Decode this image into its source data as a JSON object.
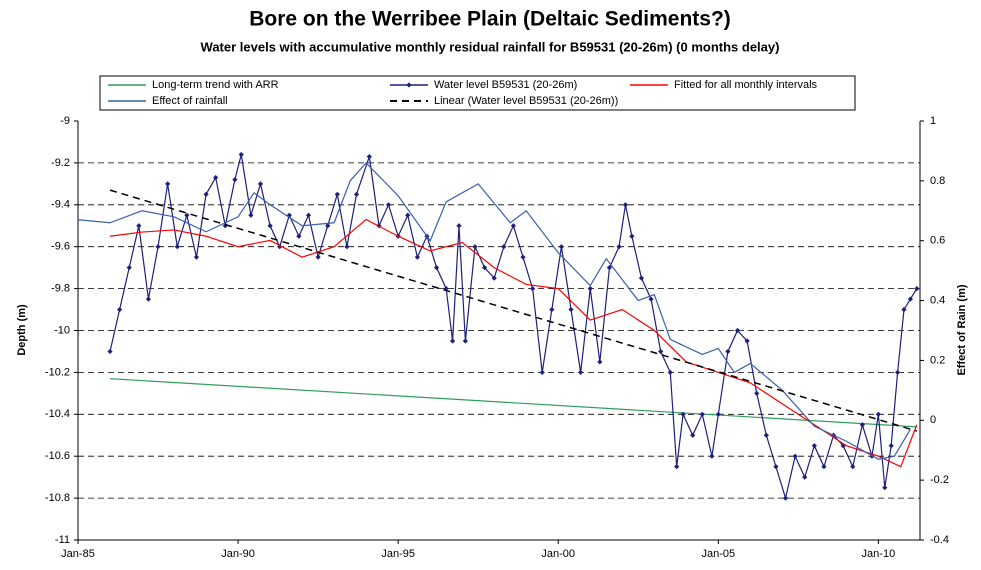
{
  "chart_data": {
    "type": "line",
    "title": "Bore on the Werribee Plain (Deltaic Sediments?)",
    "subtitle": "Water levels with accumulative monthly residual rainfall for B59531 (20-26m) (0 months delay)",
    "y_label": "Depth (m)",
    "y2_label": "Effect of Rain (m)",
    "xlim": [
      1985,
      2011.3
    ],
    "ylim": [
      -11,
      -9
    ],
    "y2lim": [
      -0.4,
      1
    ],
    "xticks": [
      {
        "value": 1985,
        "label": "Jan-85"
      },
      {
        "value": 1990,
        "label": "Jan-90"
      },
      {
        "value": 1995,
        "label": "Jan-95"
      },
      {
        "value": 2000,
        "label": "Jan-00"
      },
      {
        "value": 2005,
        "label": "Jan-05"
      },
      {
        "value": 2010,
        "label": "Jan-10"
      }
    ],
    "yticks": [
      -11,
      -10.8,
      -10.6,
      -10.4,
      -10.2,
      -10,
      -9.8,
      -9.6,
      -9.4,
      -9.2,
      -9
    ],
    "y2ticks": [
      -0.4,
      -0.2,
      0,
      0.2,
      0.4,
      0.6,
      0.8,
      1
    ],
    "grid": true,
    "legend": "top",
    "series": [
      {
        "name": "Long-term trend with ARR",
        "color": "#2e9e5b",
        "x": [
          1986,
          2011.2
        ],
        "values": [
          -10.23,
          -10.46
        ]
      },
      {
        "name": "Water level B59531 (20-26m)",
        "color": "#1f1f7a",
        "marker": "diamond",
        "x": [
          1986.0,
          1986.3,
          1986.6,
          1986.9,
          1987.2,
          1987.5,
          1987.8,
          1988.1,
          1988.4,
          1988.7,
          1989.0,
          1989.3,
          1989.6,
          1989.9,
          1990.1,
          1990.4,
          1990.7,
          1991.0,
          1991.3,
          1991.6,
          1991.9,
          1992.2,
          1992.5,
          1992.8,
          1993.1,
          1993.4,
          1993.7,
          1994.1,
          1994.4,
          1994.7,
          1995.0,
          1995.3,
          1995.6,
          1995.9,
          1996.2,
          1996.5,
          1996.7,
          1996.9,
          1997.1,
          1997.4,
          1997.7,
          1998.0,
          1998.3,
          1998.6,
          1998.9,
          1999.2,
          1999.5,
          1999.8,
          2000.1,
          2000.4,
          2000.7,
          2001.0,
          2001.3,
          2001.6,
          2001.9,
          2002.1,
          2002.3,
          2002.6,
          2002.9,
          2003.2,
          2003.5,
          2003.7,
          2003.9,
          2004.2,
          2004.5,
          2004.8,
          2005.0,
          2005.3,
          2005.6,
          2005.9,
          2006.2,
          2006.5,
          2006.8,
          2007.1,
          2007.4,
          2007.7,
          2008.0,
          2008.3,
          2008.6,
          2008.9,
          2009.2,
          2009.5,
          2009.8,
          2010.0,
          2010.2,
          2010.4,
          2010.6,
          2010.8,
          2011.0,
          2011.2
        ],
        "values": [
          -10.1,
          -9.9,
          -9.7,
          -9.5,
          -9.85,
          -9.6,
          -9.3,
          -9.6,
          -9.45,
          -9.65,
          -9.35,
          -9.27,
          -9.5,
          -9.28,
          -9.16,
          -9.45,
          -9.3,
          -9.5,
          -9.6,
          -9.45,
          -9.55,
          -9.45,
          -9.65,
          -9.5,
          -9.35,
          -9.6,
          -9.35,
          -9.17,
          -9.5,
          -9.4,
          -9.55,
          -9.45,
          -9.65,
          -9.55,
          -9.7,
          -9.8,
          -10.05,
          -9.5,
          -10.05,
          -9.6,
          -9.7,
          -9.75,
          -9.6,
          -9.5,
          -9.65,
          -9.8,
          -10.2,
          -9.9,
          -9.6,
          -9.9,
          -10.2,
          -9.8,
          -10.15,
          -9.7,
          -9.6,
          -9.4,
          -9.55,
          -9.75,
          -9.85,
          -10.1,
          -10.2,
          -10.65,
          -10.4,
          -10.5,
          -10.4,
          -10.6,
          -10.4,
          -10.1,
          -10.0,
          -10.05,
          -10.3,
          -10.5,
          -10.65,
          -10.8,
          -10.6,
          -10.7,
          -10.55,
          -10.65,
          -10.5,
          -10.55,
          -10.65,
          -10.45,
          -10.6,
          -10.4,
          -10.75,
          -10.55,
          -10.2,
          -9.9,
          -9.85,
          -9.8
        ]
      },
      {
        "name": "Fitted for all monthly intervals",
        "color": "#ff0000",
        "x": [
          1986,
          1987,
          1988,
          1989,
          1990,
          1991,
          1992,
          1993,
          1994,
          1995,
          1996,
          1997,
          1998,
          1999,
          2000,
          2001,
          2002,
          2003,
          2004,
          2005,
          2006,
          2007,
          2008,
          2009,
          2010,
          2010.7,
          2011.2
        ],
        "values": [
          -9.55,
          -9.53,
          -9.52,
          -9.55,
          -9.6,
          -9.57,
          -9.65,
          -9.6,
          -9.47,
          -9.55,
          -9.62,
          -9.58,
          -9.7,
          -9.78,
          -9.8,
          -9.95,
          -9.9,
          -10.0,
          -10.15,
          -10.2,
          -10.25,
          -10.35,
          -10.45,
          -10.55,
          -10.6,
          -10.65,
          -10.45
        ]
      },
      {
        "name": "Effect of rainfall",
        "color": "#3a5fb0",
        "axis": "y2",
        "x": [
          1985,
          1986,
          1987,
          1988,
          1989,
          1990,
          1990.5,
          1991,
          1992,
          1993,
          1993.5,
          1994,
          1995,
          1996,
          1996.5,
          1997.5,
          1998.5,
          1999,
          2000,
          2001,
          2001.5,
          2002.5,
          2003,
          2003.5,
          2004.5,
          2005,
          2005.5,
          2006,
          2007,
          2008,
          2009,
          2009.5,
          2010,
          2010.5,
          2011
        ],
        "values": [
          0.67,
          0.66,
          0.7,
          0.68,
          0.63,
          0.68,
          0.76,
          0.72,
          0.65,
          0.66,
          0.8,
          0.86,
          0.75,
          0.6,
          0.73,
          0.79,
          0.66,
          0.7,
          0.56,
          0.45,
          0.54,
          0.4,
          0.42,
          0.27,
          0.22,
          0.24,
          0.16,
          0.19,
          0.1,
          -0.02,
          -0.07,
          -0.1,
          -0.13,
          -0.12,
          -0.03
        ]
      },
      {
        "name": "Linear (Water level B59531 (20-26m))",
        "color": "#000000",
        "dash": true,
        "x": [
          1986,
          2011.2
        ],
        "values": [
          -9.33,
          -10.48
        ]
      }
    ]
  }
}
